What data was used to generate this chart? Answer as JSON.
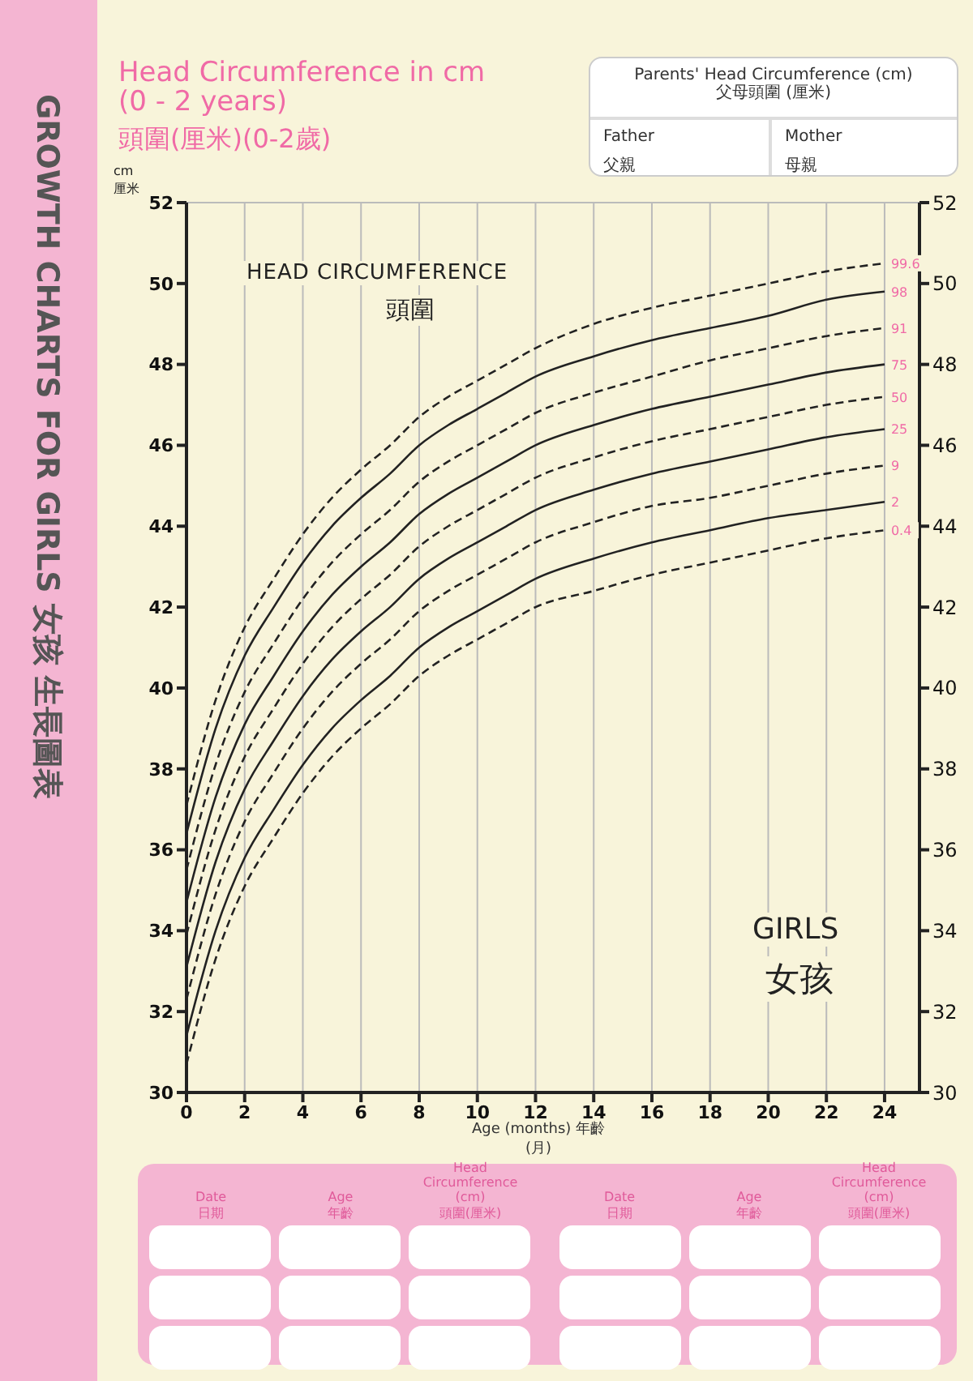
{
  "chart_data": {
    "type": "line",
    "title": "Head Circumference in cm (0 - 2 years)",
    "subtitle": "頭圍(厘米)(0-2歲)",
    "xlabel": "Age (months) 年齡(月)",
    "ylabel": "cm 厘米",
    "x": [
      0,
      1,
      2,
      3,
      4,
      5,
      6,
      7,
      8,
      9,
      10,
      11,
      12,
      14,
      16,
      18,
      20,
      22,
      24
    ],
    "series": [
      {
        "name": "99.6",
        "color": "#222222",
        "line_style": "dashed",
        "values": [
          37.1,
          39.7,
          41.5,
          42.7,
          43.8,
          44.7,
          45.4,
          46.0,
          46.7,
          47.2,
          47.6,
          48.0,
          48.4,
          49.0,
          49.4,
          49.7,
          50.0,
          50.3,
          50.5
        ]
      },
      {
        "name": "98",
        "color": "#222222",
        "line_style": "solid",
        "values": [
          36.4,
          39.0,
          40.8,
          42.0,
          43.1,
          44.0,
          44.7,
          45.3,
          46.0,
          46.5,
          46.9,
          47.3,
          47.7,
          48.2,
          48.6,
          48.9,
          49.2,
          49.6,
          49.8
        ]
      },
      {
        "name": "91",
        "color": "#222222",
        "line_style": "dashed",
        "values": [
          35.5,
          38.1,
          39.9,
          41.1,
          42.2,
          43.1,
          43.8,
          44.4,
          45.1,
          45.6,
          46.0,
          46.4,
          46.8,
          47.3,
          47.7,
          48.1,
          48.4,
          48.7,
          48.9
        ]
      },
      {
        "name": "75",
        "color": "#222222",
        "line_style": "solid",
        "values": [
          34.7,
          37.3,
          39.1,
          40.3,
          41.4,
          42.3,
          43.0,
          43.6,
          44.3,
          44.8,
          45.2,
          45.6,
          46.0,
          46.5,
          46.9,
          47.2,
          47.5,
          47.8,
          48.0
        ]
      },
      {
        "name": "50",
        "color": "#222222",
        "line_style": "dashed",
        "values": [
          33.9,
          36.5,
          38.3,
          39.5,
          40.6,
          41.5,
          42.2,
          42.8,
          43.5,
          44.0,
          44.4,
          44.8,
          45.2,
          45.7,
          46.1,
          46.4,
          46.7,
          47.0,
          47.2
        ]
      },
      {
        "name": "25",
        "color": "#222222",
        "line_style": "solid",
        "values": [
          33.1,
          35.7,
          37.5,
          38.7,
          39.8,
          40.7,
          41.4,
          42.0,
          42.7,
          43.2,
          43.6,
          44.0,
          44.4,
          44.9,
          45.3,
          45.6,
          45.9,
          46.2,
          46.4
        ]
      },
      {
        "name": "9",
        "color": "#222222",
        "line_style": "dashed",
        "values": [
          32.3,
          34.9,
          36.7,
          37.9,
          39.0,
          39.9,
          40.6,
          41.2,
          41.9,
          42.4,
          42.8,
          43.2,
          43.6,
          44.1,
          44.5,
          44.7,
          45.0,
          45.3,
          45.5
        ]
      },
      {
        "name": "2",
        "color": "#222222",
        "line_style": "solid",
        "values": [
          31.4,
          34.0,
          35.8,
          37.0,
          38.1,
          39.0,
          39.7,
          40.3,
          41.0,
          41.5,
          41.9,
          42.3,
          42.7,
          43.2,
          43.6,
          43.9,
          44.2,
          44.4,
          44.6
        ]
      },
      {
        "name": "0.4",
        "color": "#222222",
        "line_style": "dashed",
        "values": [
          30.7,
          33.3,
          35.1,
          36.3,
          37.4,
          38.3,
          39.0,
          39.6,
          40.3,
          40.8,
          41.2,
          41.6,
          42.0,
          42.4,
          42.8,
          43.1,
          43.4,
          43.7,
          43.9
        ]
      }
    ],
    "xlim": [
      0,
      25.2
    ],
    "xticks": [
      0,
      2,
      4,
      6,
      8,
      10,
      12,
      14,
      16,
      18,
      20,
      22,
      24
    ],
    "ylim": [
      30,
      52
    ],
    "yticks": [
      30,
      32,
      34,
      36,
      38,
      40,
      42,
      44,
      46,
      48,
      50,
      52
    ],
    "y2lim": [
      30,
      52
    ],
    "y2ticks": [
      30,
      32,
      34,
      36,
      38,
      40,
      42,
      44,
      46,
      48,
      50,
      52
    ],
    "grid": true,
    "marker": "none",
    "legend": false,
    "annotations": [
      "HEAD CIRCUMFERENCE",
      "頭圍",
      "GIRLS",
      "女孩",
      "GROWTH CHARTS FOR GIRLS 女孩 生長圖表",
      "Parents' Head Circumference (cm)",
      "父母頭圍 (厘米)",
      "Father",
      "父親",
      "Mother",
      "母親",
      "Date",
      "日期",
      "Age",
      "年齡",
      "Head Circumference (cm)",
      "頭圍(厘米)",
      "Date",
      "日期",
      "Age",
      "年齡",
      "Head Circumference (cm)",
      "頭圍(厘米)"
    ]
  }
}
